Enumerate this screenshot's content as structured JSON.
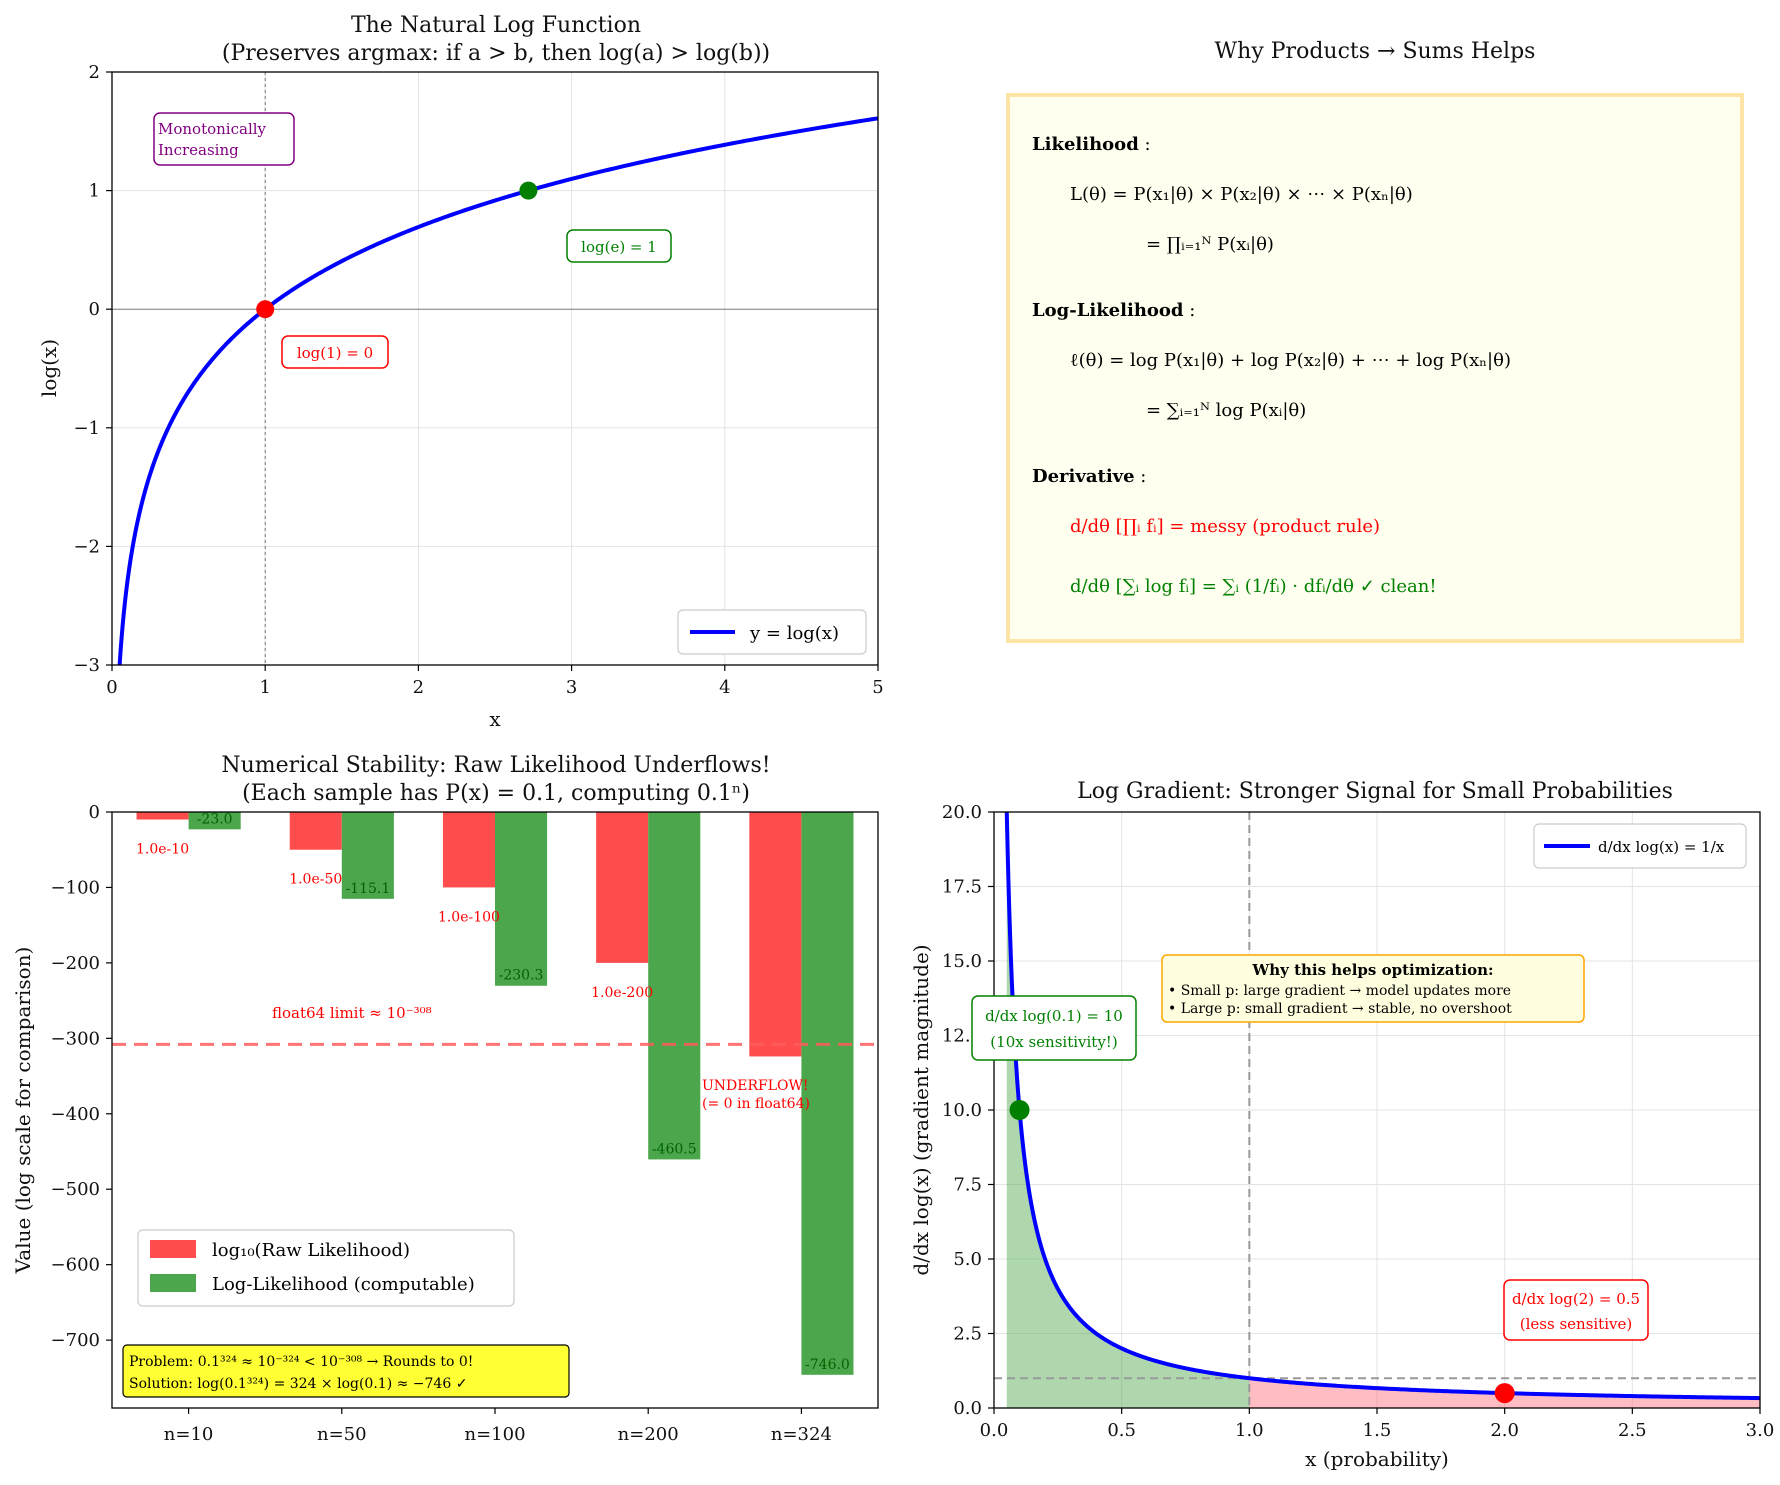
{
  "chart_data": [
    {
      "type": "line",
      "title": "The Natural Log Function",
      "subtitle": "(Preserves argmax: if a > b, then log(a) > log(b))",
      "xlabel": "x",
      "ylabel": "log(x)",
      "xlim": [
        0,
        5
      ],
      "ylim": [
        -3,
        2
      ],
      "x_ticks": [
        "0",
        "1",
        "2",
        "3",
        "4",
        "5"
      ],
      "y_ticks": [
        "2",
        "1",
        "0",
        "−1",
        "−2",
        "−3"
      ],
      "grid": true,
      "legend_position": "bottom-right",
      "series": [
        {
          "name": "y = log(x)",
          "function": "ln(x)",
          "color": "#0000ff"
        }
      ],
      "points": [
        {
          "x": 1,
          "y": 0,
          "color": "#ff0000",
          "label": "log(1) = 0"
        },
        {
          "x": 2.718,
          "y": 1,
          "color": "#008000",
          "label": "log(e) = 1"
        }
      ],
      "vline_x": 1,
      "hline_y": 0,
      "annotations": {
        "monotonic_line1": "Monotonically",
        "monotonic_line2": "Increasing"
      }
    },
    {
      "type": "table",
      "title": "Why Products → Sums Helps",
      "likelihood_label": "Likelihood",
      "likelihood_eq1": "L(θ) = P(x₁|θ) × P(x₂|θ) × ⋯ × P(xₙ|θ)",
      "likelihood_eq2": "= ∏ᵢ₌₁ᴺ P(xᵢ|θ)",
      "loglik_label": "Log-Likelihood",
      "loglik_eq1": "ℓ(θ) = log P(x₁|θ) + log P(x₂|θ) + ⋯ + log P(xₙ|θ)",
      "loglik_eq2": "= ∑ᵢ₌₁ᴺ log P(xᵢ|θ)",
      "derivative_label": "Derivative",
      "deriv_eq1": "d/dθ [∏ᵢ fᵢ] = messy (product rule)",
      "deriv_eq2": "d/dθ [∑ᵢ log fᵢ] = ∑ᵢ (1/fᵢ) · dfᵢ/dθ ✓ clean!"
    },
    {
      "type": "bar",
      "title": "Numerical Stability: Raw Likelihood Underflows!",
      "subtitle": "(Each sample has P(x) = 0.1, computing 0.1ⁿ)",
      "ylabel": "Value (log scale for comparison)",
      "ylim": [
        -790,
        0
      ],
      "y_ticks": [
        "0",
        "−100",
        "−200",
        "−300",
        "−400",
        "−500",
        "−600",
        "−700"
      ],
      "categories": [
        "n=10",
        "n=50",
        "n=100",
        "n=200",
        "n=324"
      ],
      "series": [
        {
          "name": "log₁₀(Raw Likelihood)",
          "color": "#ff4d4d",
          "values": [
            -10,
            -50,
            -100,
            -200,
            -324
          ],
          "labels": [
            "1.0e-10",
            "1.0e-50",
            "1.0e-100",
            "1.0e-200",
            ""
          ]
        },
        {
          "name": "Log-Likelihood (computable)",
          "color": "#4ca64c",
          "values": [
            -23.0,
            -115.1,
            -230.3,
            -460.5,
            -746.0
          ],
          "labels": [
            "-23.0",
            "-115.1",
            "-230.3",
            "-460.5",
            "-746.0"
          ]
        }
      ],
      "limit_line": {
        "y": -308,
        "label": "float64 limit ≈ 10⁻³⁰⁸"
      },
      "underflow_line1": "UNDERFLOW!",
      "underflow_line2": "(= 0 in float64)",
      "problem_text": "Problem: 0.1³²⁴ ≈ 10⁻³²⁴ < 10⁻³⁰⁸ → Rounds to 0!",
      "solution_text": "Solution: log(0.1³²⁴) = 324 × log(0.1) ≈ −746 ✓",
      "legend_position": "bottom-left"
    },
    {
      "type": "line",
      "title": "Log Gradient: Stronger Signal for Small Probabilities",
      "xlabel": "x (probability)",
      "ylabel": "d/dx log(x) (gradient magnitude)",
      "xlim": [
        0,
        3
      ],
      "ylim": [
        0,
        20
      ],
      "x_ticks": [
        "0.0",
        "0.5",
        "1.0",
        "1.5",
        "2.0",
        "2.5",
        "3.0"
      ],
      "y_ticks": [
        "20.0",
        "17.5",
        "15.0",
        "12.5",
        "10.0",
        "7.5",
        "5.0",
        "2.5",
        "0.0"
      ],
      "grid": true,
      "legend_position": "top-right",
      "series": [
        {
          "name": "d/dx log(x) = 1/x",
          "function": "1/x",
          "color": "#0000ff"
        }
      ],
      "points": [
        {
          "x": 0.1,
          "y": 10,
          "color": "#008000",
          "label1": "d/dx log(0.1) = 10",
          "label2": "(10x sensitivity!)"
        },
        {
          "x": 2,
          "y": 0.5,
          "color": "#ff0000",
          "label1": "d/dx log(2) = 0.5",
          "label2": "(less sensitive)"
        }
      ],
      "fill_regions": [
        {
          "from": 0.05,
          "to": 1.0,
          "color": "#4ca64c"
        },
        {
          "from": 1.0,
          "to": 3.0,
          "color": "#ff6b7a"
        }
      ],
      "vline_x": 1,
      "hline_y": 1,
      "info_title": "Why this helps optimization:",
      "info_line1": "• Small p: large gradient → model updates more",
      "info_line2": "• Large p: small gradient → stable, no overshoot"
    }
  ]
}
